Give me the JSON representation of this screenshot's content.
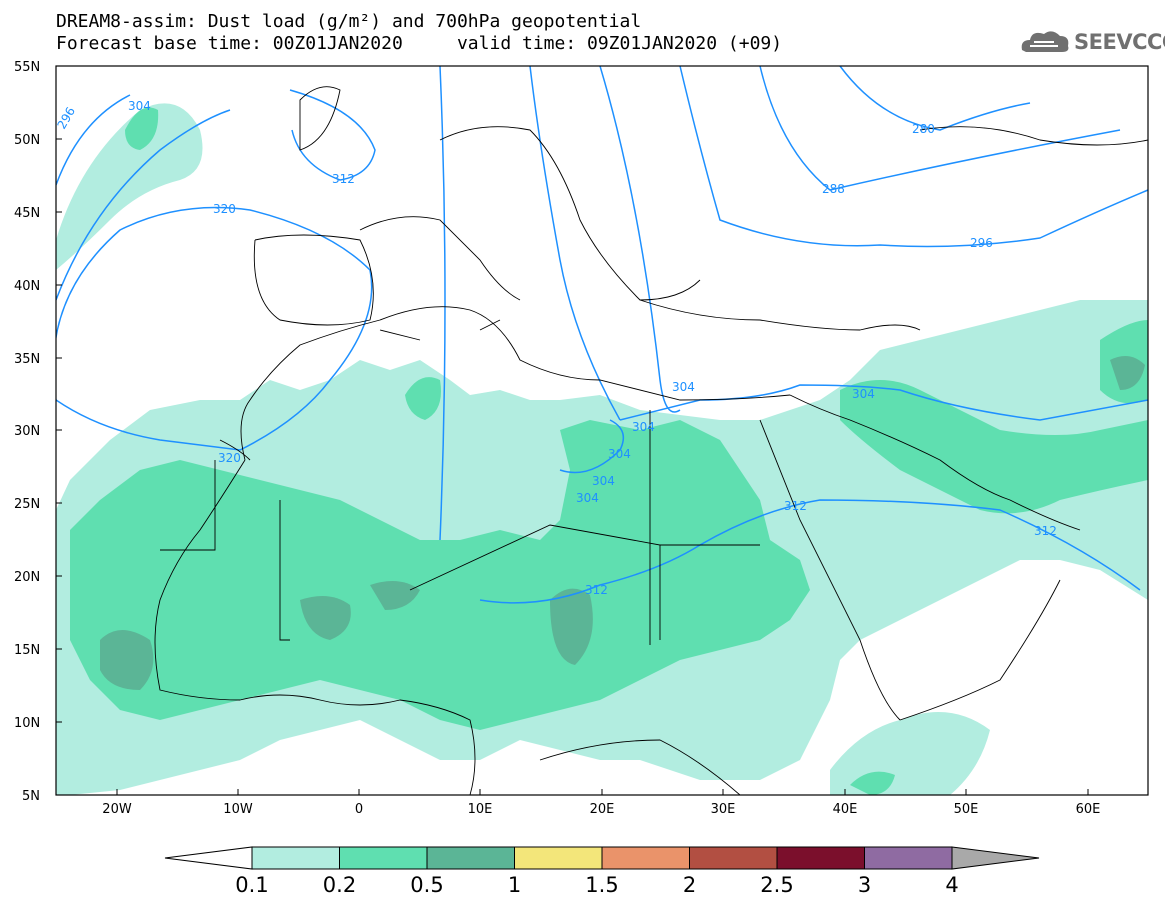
{
  "title_line1": "DREAM8-assim: Dust load (g/m²) and 700hPa geopotential",
  "title_line2": "Forecast base time: 00Z01JAN2020     valid time: 09Z01JAN2020 (+09)",
  "logo": {
    "icon": "cloud-logo-icon",
    "text": "SEEVCCC"
  },
  "lat_labels": [
    "55N",
    "50N",
    "45N",
    "40N",
    "35N",
    "30N",
    "25N",
    "20N",
    "15N",
    "10N",
    "5N"
  ],
  "lon_labels": [
    "20W",
    "10W",
    "0",
    "10E",
    "20E",
    "30E",
    "40E",
    "50E",
    "60E"
  ],
  "contour_labels": [
    "296",
    "304",
    "312",
    "320",
    "280",
    "288",
    "296",
    "304",
    "304",
    "304",
    "304",
    "304",
    "304",
    "312",
    "312",
    "312",
    "320"
  ],
  "colorbar": {
    "labels": [
      "0.1",
      "0.2",
      "0.5",
      "1",
      "1.5",
      "2",
      "2.5",
      "3",
      "4"
    ],
    "colors": [
      "#ffffff",
      "#b2ede0",
      "#5fdfb0",
      "#5bb596",
      "#f3e67a",
      "#ea936a",
      "#b24f42",
      "#7b0f2c",
      "#8f6ba2",
      "#a9a9a9"
    ]
  },
  "colors": {
    "dust_low": "#b2ede0",
    "dust_mid": "#5fdfb0",
    "dust_high": "#5bb596",
    "contour": "#1e90ff"
  }
}
